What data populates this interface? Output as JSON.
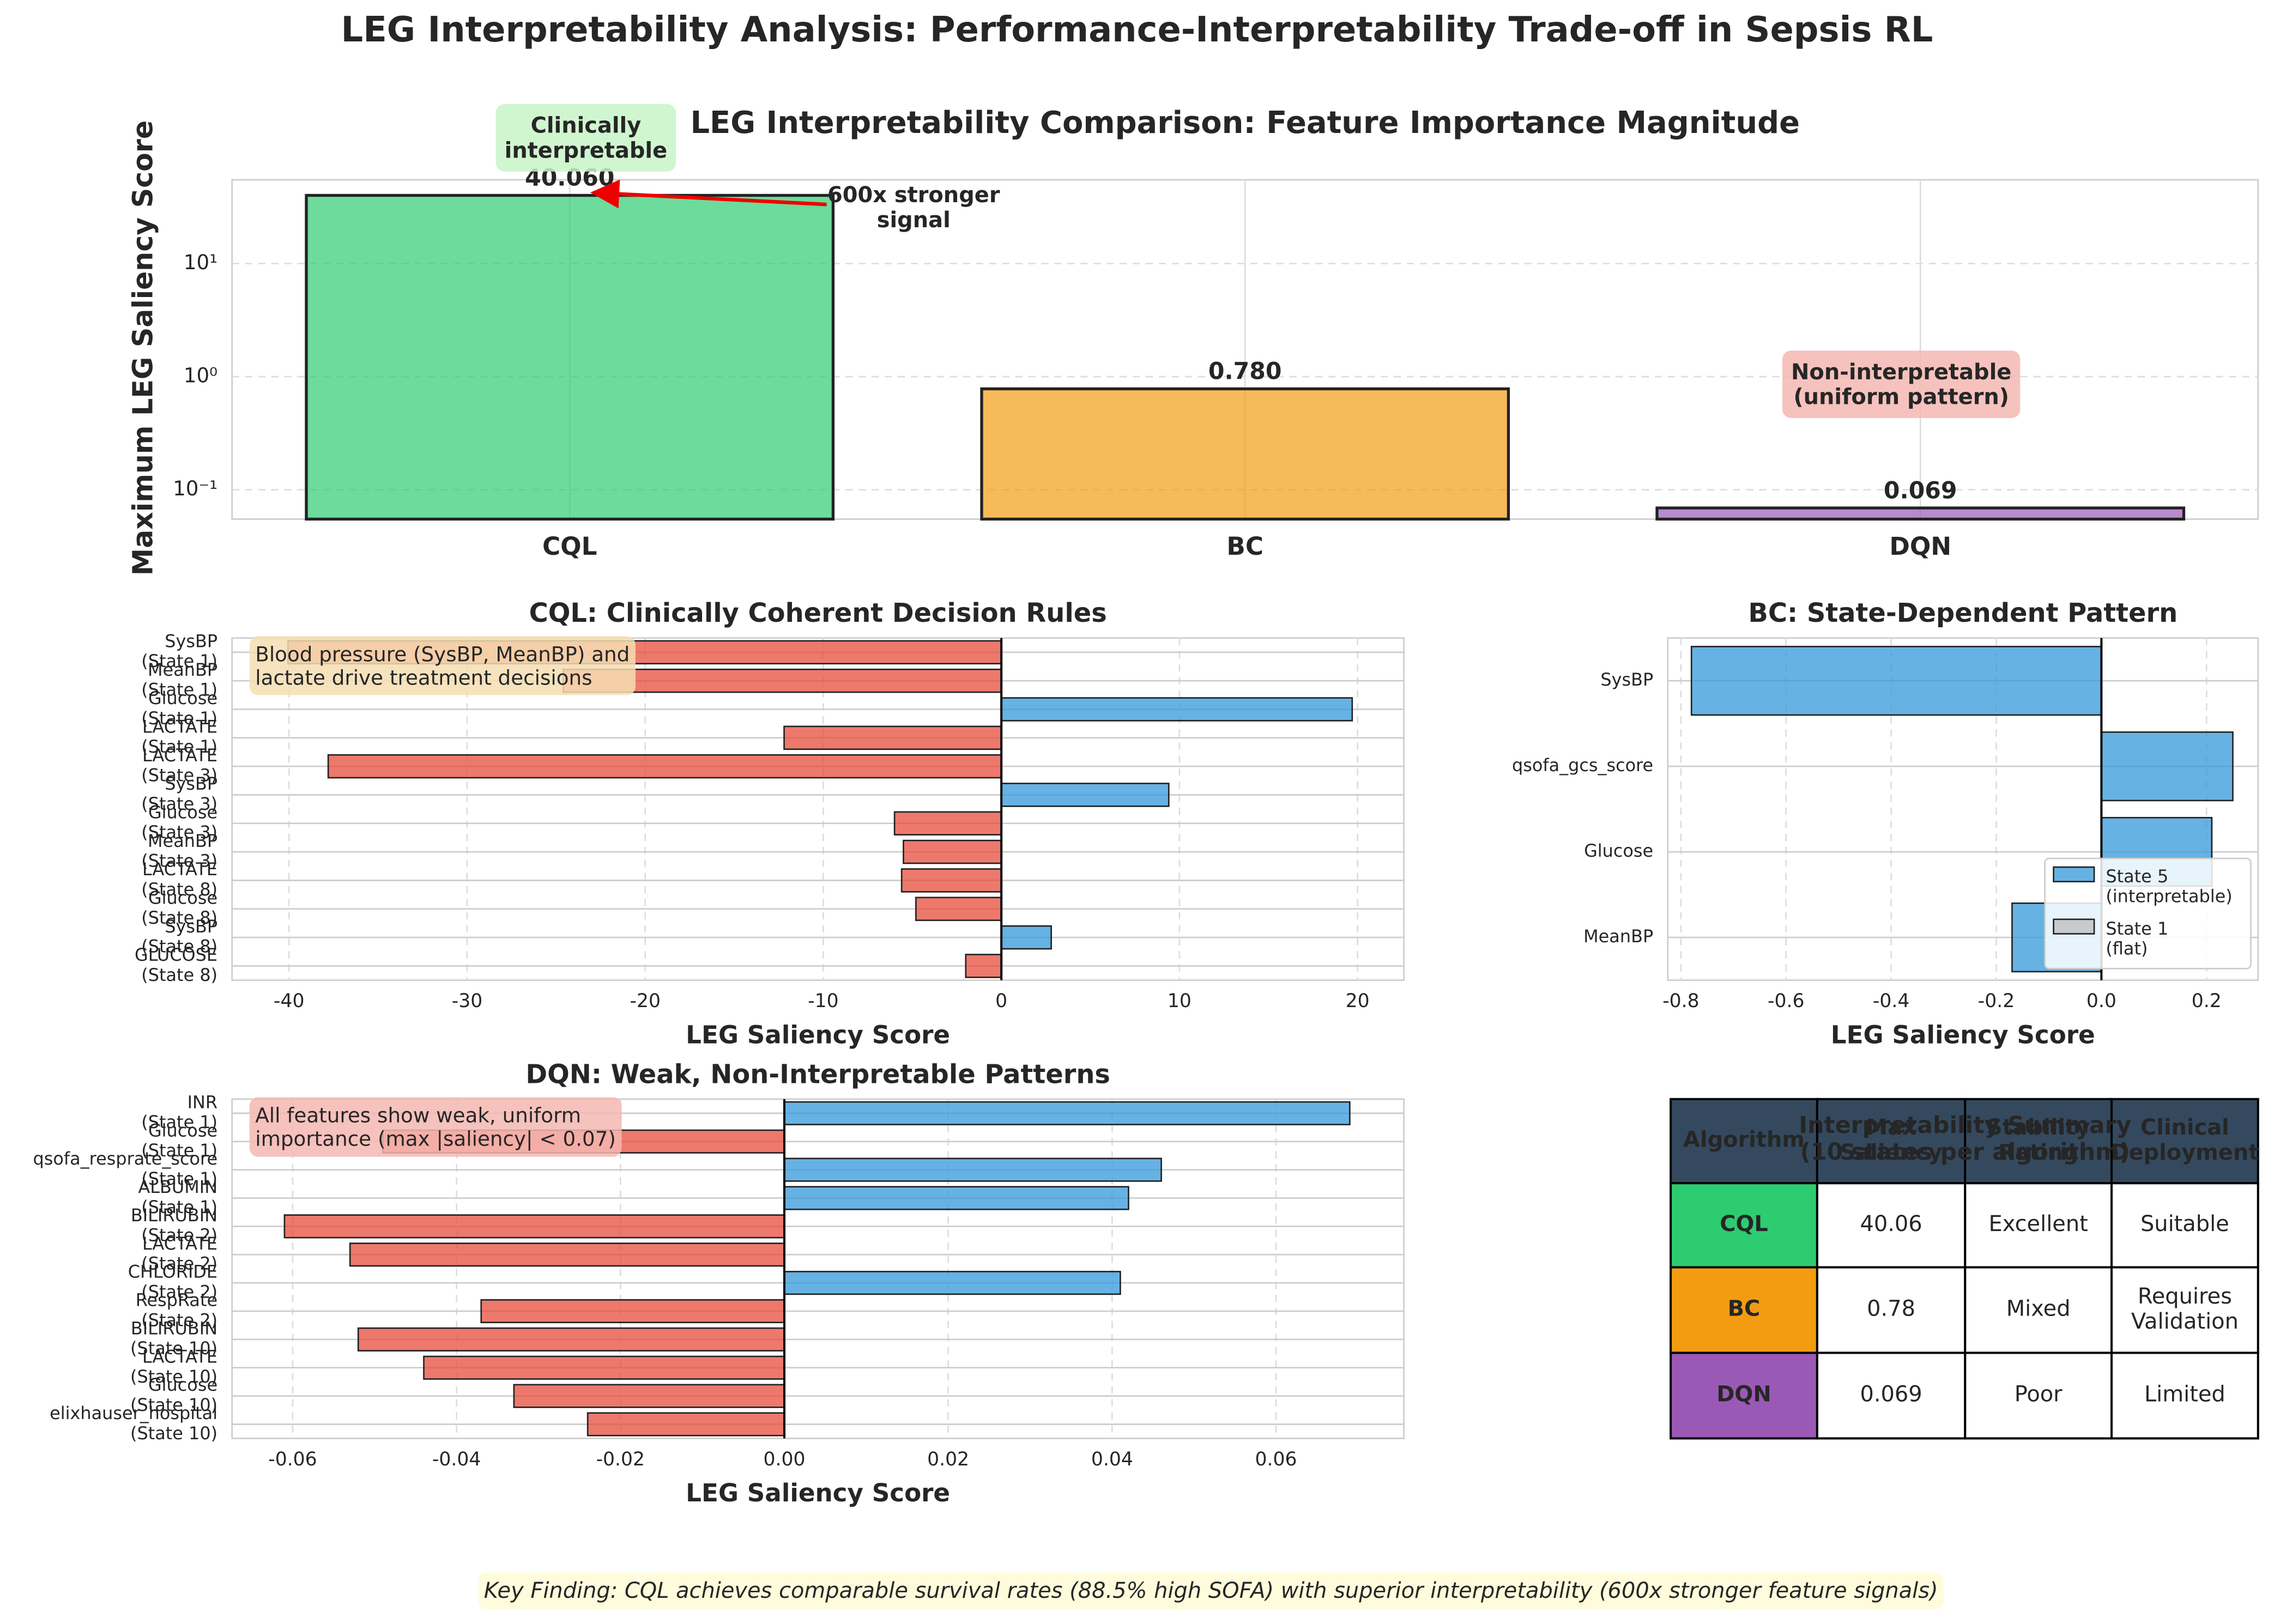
{
  "title": "LEG Interpretability Analysis: Performance-Interpretability Trade-off in Sepsis RL",
  "chart_data": [
    {
      "type": "bar",
      "title": "LEG Interpretability Comparison: Feature Importance Magnitude",
      "ylabel": "Maximum LEG Saliency Score",
      "categories": [
        "CQL",
        "BC",
        "DQN"
      ],
      "values": [
        40.06,
        0.78,
        0.069
      ],
      "value_labels": [
        "40.060",
        "0.780",
        "0.069"
      ],
      "colors": [
        "#2ecc71",
        "#f39c12",
        "#9b59b6"
      ],
      "log_scale": true,
      "ylim": [
        0.055,
        55
      ],
      "yticks": [
        {
          "value": 0.1,
          "label": "10⁻¹"
        },
        {
          "value": 1,
          "label": "10⁰"
        },
        {
          "value": 10,
          "label": "10¹"
        }
      ],
      "grid": true,
      "annotations": [
        "Clinically\ninterpretable",
        "600x stronger\nsignal",
        "Non-interpretable\n(uniform pattern)"
      ]
    },
    {
      "type": "hbar",
      "title": "CQL: Clinically Coherent Decision Rules",
      "title_color": "#2ecc71",
      "xlabel": "LEG Saliency Score",
      "categories": [
        "SysBP\n(State 1)",
        "MeanBP\n(State 1)",
        "Glucose\n(State 1)",
        "LACTATE\n(State 1)",
        "LACTATE\n(State 3)",
        "SysBP\n(State 3)",
        "Glucose\n(State 3)",
        "MeanBP\n(State 3)",
        "LACTATE\n(State 8)",
        "Glucose\n(State 8)",
        "SysBP\n(State 8)",
        "GLUCOSE\n(State 8)"
      ],
      "values": [
        -40.06,
        -24.6,
        19.7,
        -12.2,
        -37.8,
        9.4,
        -6.0,
        -5.5,
        -5.6,
        -4.8,
        2.8,
        -2.0
      ],
      "positive_color": "#3498db",
      "negative_color": "#e74c3c",
      "xlim": [
        -43.2,
        22.6
      ],
      "xticks": [
        -40,
        -30,
        -20,
        -10,
        0,
        10,
        20
      ],
      "grid": true,
      "annotation": "Blood pressure (SysBP, MeanBP) and\nlactate drive treatment decisions"
    },
    {
      "type": "hbar",
      "title": "BC: State-Dependent Pattern",
      "title_color": "#f39c12",
      "xlabel": "LEG Saliency Score",
      "categories": [
        "SysBP",
        "qsofa_gcs_score",
        "Glucose",
        "MeanBP"
      ],
      "series": [
        {
          "name": "State 5\n(interpretable)",
          "color": "#3498db",
          "values": [
            -0.78,
            0.25,
            0.21,
            -0.17
          ]
        },
        {
          "name": "State 1\n(flat)",
          "color": "#bdbdbd",
          "values": [
            0,
            0,
            0,
            0
          ]
        }
      ],
      "xlim": [
        -0.825,
        0.298
      ],
      "xticks": [
        -0.8,
        -0.6,
        -0.4,
        -0.2,
        {
          "value": 0,
          "label": "0.0"
        },
        0.2
      ],
      "grid": true,
      "legend": "lower right"
    },
    {
      "type": "hbar",
      "title": "DQN: Weak, Non-Interpretable Patterns",
      "title_color": "#9b59b6",
      "xlabel": "LEG Saliency Score",
      "categories": [
        "INR\n(State 1)",
        "Glucose\n(State 1)",
        "qsofa_resprate_score\n(State 1)",
        "ALBUMIN\n(State 1)",
        "BILIRUBIN\n(State 2)",
        "LACTATE\n(State 2)",
        "CHLORIDE\n(State 2)",
        "RespRate\n(State 2)",
        "BILIRUBIN\n(State 10)",
        "LACTATE\n(State 10)",
        "Glucose\n(State 10)",
        "elixhauser_hospital\n(State 10)"
      ],
      "values": [
        0.069,
        -0.049,
        0.046,
        0.042,
        -0.061,
        -0.053,
        0.041,
        -0.037,
        -0.052,
        -0.044,
        -0.033,
        -0.024
      ],
      "positive_color": "#3498db",
      "negative_color": "#e74c3c",
      "xlim": [
        -0.0674,
        0.0756
      ],
      "xticks": [
        -0.06,
        -0.04,
        -0.02,
        {
          "value": 0,
          "label": "0.00"
        },
        0.02,
        0.04,
        0.06
      ],
      "grid": true,
      "annotation": "All features show weak, uniform\nimportance (max |saliency| < 0.07)"
    }
  ],
  "table": {
    "title": "Interpretability Summary\n(10 states per algorithm)",
    "columns": [
      "Algorithm",
      "Max\nSaliency",
      "Stability\nRating",
      "Clinical\nDeployment"
    ],
    "rows": [
      [
        "CQL",
        "40.06",
        "Excellent",
        "Suitable"
      ],
      [
        "BC",
        "0.78",
        "Mixed",
        "Requires\nValidation"
      ],
      [
        "DQN",
        "0.069",
        "Poor",
        "Limited"
      ]
    ],
    "header_color": "#34495e",
    "row_colors": [
      "#2ecc71",
      "#f39c12",
      "#9b59b6"
    ]
  },
  "footnote": "Key Finding: CQL achieves comparable survival rates (88.5% high SOFA) with superior interpretability (600x stronger feature signals)"
}
